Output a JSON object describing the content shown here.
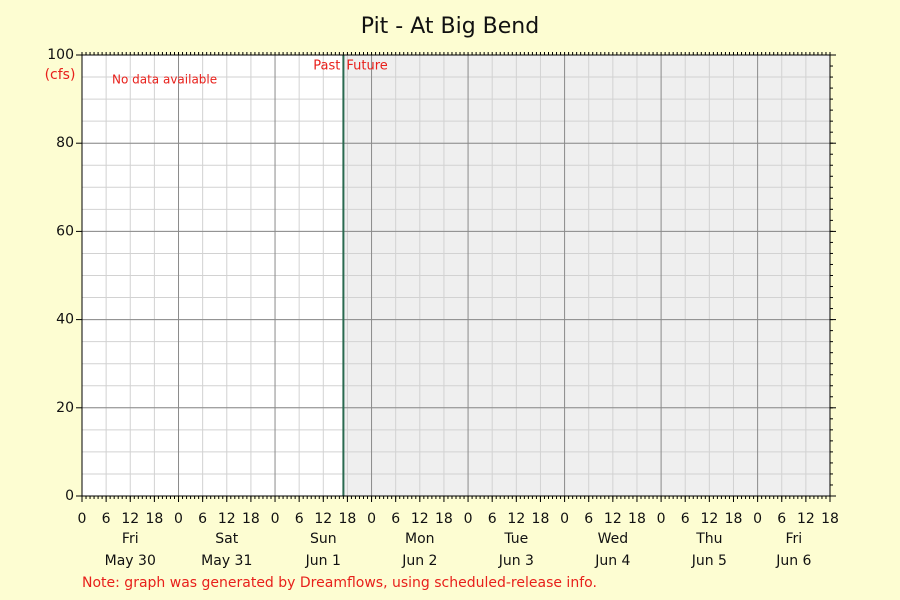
{
  "chart_data": {
    "type": "line",
    "title": "Pit - At Big Bend",
    "y_unit": "(cfs)",
    "no_data_text": "No data available",
    "note": "Note: graph was generated by Dreamflows, using scheduled-release info.",
    "past_label": "Past",
    "future_label": "Future",
    "days": [
      {
        "weekday": "Fri",
        "date": "May 30"
      },
      {
        "weekday": "Sat",
        "date": "May 31"
      },
      {
        "weekday": "Sun",
        "date": "Jun 1"
      },
      {
        "weekday": "Mon",
        "date": "Jun 2"
      },
      {
        "weekday": "Tue",
        "date": "Jun 3"
      },
      {
        "weekday": "Wed",
        "date": "Jun 4"
      },
      {
        "weekday": "Thu",
        "date": "Jun 5"
      },
      {
        "weekday": "Fri",
        "date": "Jun 6"
      }
    ],
    "hour_ticks": [
      0,
      6,
      12,
      18
    ],
    "divider": {
      "day": 2,
      "hour": 17
    },
    "ylim": [
      0,
      100
    ],
    "yticks": [
      0,
      20,
      40,
      60,
      80,
      100
    ],
    "y_minor_step": 5,
    "grid": true,
    "colors": {
      "past": "#ffffff",
      "future": "#efefef",
      "divider": "#2a6a50",
      "major_grid": "#8a8a8a",
      "minor_grid": "#d2d2d2"
    }
  }
}
